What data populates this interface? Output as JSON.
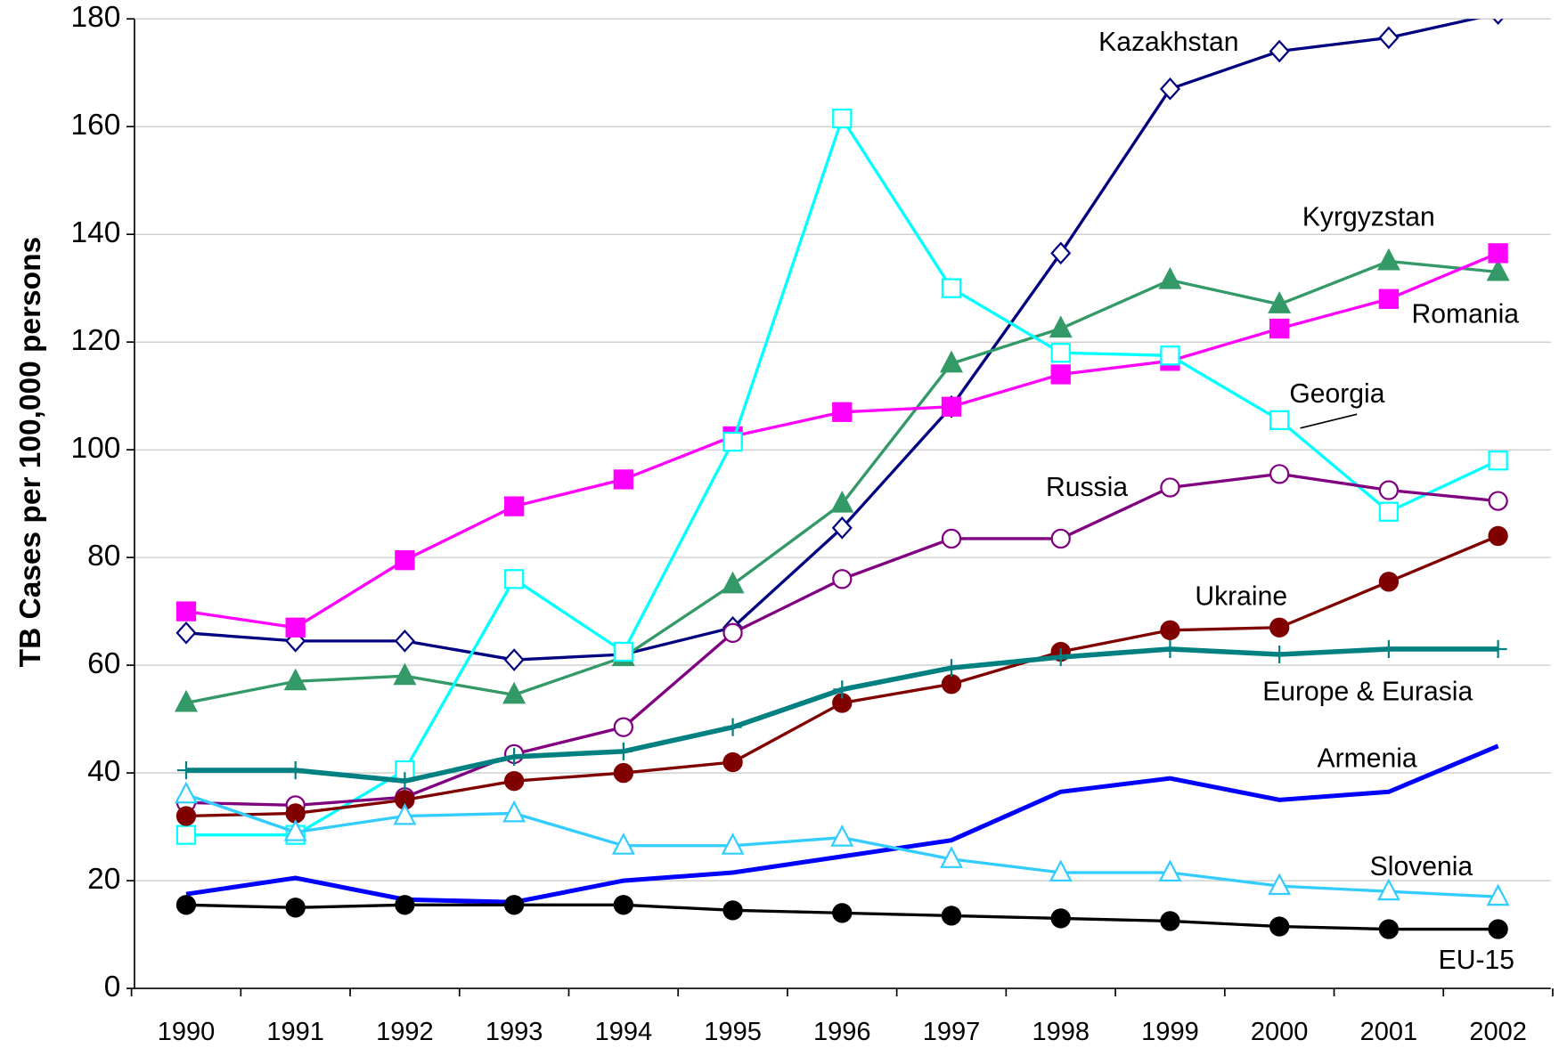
{
  "chart_data": {
    "type": "line",
    "y_label": "TB Cases per 100,000 persons",
    "categories": [
      "1990",
      "1991",
      "1992",
      "1993",
      "1994",
      "1995",
      "1996",
      "1997",
      "1998",
      "1999",
      "2000",
      "2001",
      "2002"
    ],
    "ylim": [
      0,
      180
    ],
    "yticks": [
      0,
      20,
      40,
      60,
      80,
      100,
      120,
      140,
      160,
      180
    ],
    "grid": true,
    "series": [
      {
        "name": "Kazakhstan",
        "color": "#000080",
        "marker": "diamond-open",
        "values": [
          66,
          64.5,
          64.5,
          61,
          62,
          67,
          85.5,
          108,
          136.5,
          167,
          174,
          176.5,
          181
        ]
      },
      {
        "name": "Kyrgyzstan",
        "color": "#339966",
        "marker": "triangle",
        "values": [
          53,
          57,
          58,
          54.5,
          61.5,
          75,
          90,
          116,
          122.5,
          131.5,
          127,
          135,
          133
        ]
      },
      {
        "name": "Romania",
        "color": "#ff00ff",
        "marker": "square",
        "values": [
          70,
          67,
          79.5,
          89.5,
          94.5,
          102.5,
          107,
          108,
          114,
          116.5,
          122.5,
          128,
          136.5
        ]
      },
      {
        "name": "Georgia",
        "color": "#00ffff",
        "marker": "square-open",
        "values": [
          28.5,
          28.5,
          40.5,
          76,
          62.5,
          101.5,
          161.5,
          130,
          118,
          117.5,
          105.5,
          88.5,
          98
        ]
      },
      {
        "name": "Russia",
        "color": "#800080",
        "marker": "circle-open",
        "values": [
          34.5,
          34,
          35.5,
          43.5,
          48.5,
          66,
          76,
          83.5,
          83.5,
          93,
          95.5,
          92.5,
          90.5
        ]
      },
      {
        "name": "Ukraine",
        "color": "#800000",
        "marker": "circle",
        "values": [
          32,
          32.5,
          35,
          38.5,
          40,
          42,
          53,
          56.5,
          62.5,
          66.5,
          67,
          75.5,
          84
        ]
      },
      {
        "name": "Europe & Eurasia",
        "color": "#008080",
        "marker": "plus",
        "values": [
          40.5,
          40.5,
          38.5,
          43,
          44,
          48.5,
          55.5,
          59.5,
          61.5,
          63,
          62,
          63,
          63
        ]
      },
      {
        "name": "Armenia",
        "color": "#0000ff",
        "marker": "none",
        "values": [
          17.5,
          20.5,
          16.5,
          16,
          20,
          21.5,
          24.5,
          27.5,
          36.5,
          39,
          35,
          36.5,
          45
        ]
      },
      {
        "name": "Slovenia",
        "color": "#33ccff",
        "marker": "triangle-open",
        "values": [
          36,
          29,
          32,
          32.5,
          26.5,
          26.5,
          28,
          24,
          21.5,
          21.5,
          19,
          18,
          17
        ]
      },
      {
        "name": "EU-15",
        "color": "#000000",
        "marker": "circle",
        "values": [
          15.5,
          15,
          15.5,
          15.5,
          15.5,
          14.5,
          14,
          13.5,
          13,
          12.5,
          11.5,
          11,
          11
        ]
      }
    ]
  }
}
